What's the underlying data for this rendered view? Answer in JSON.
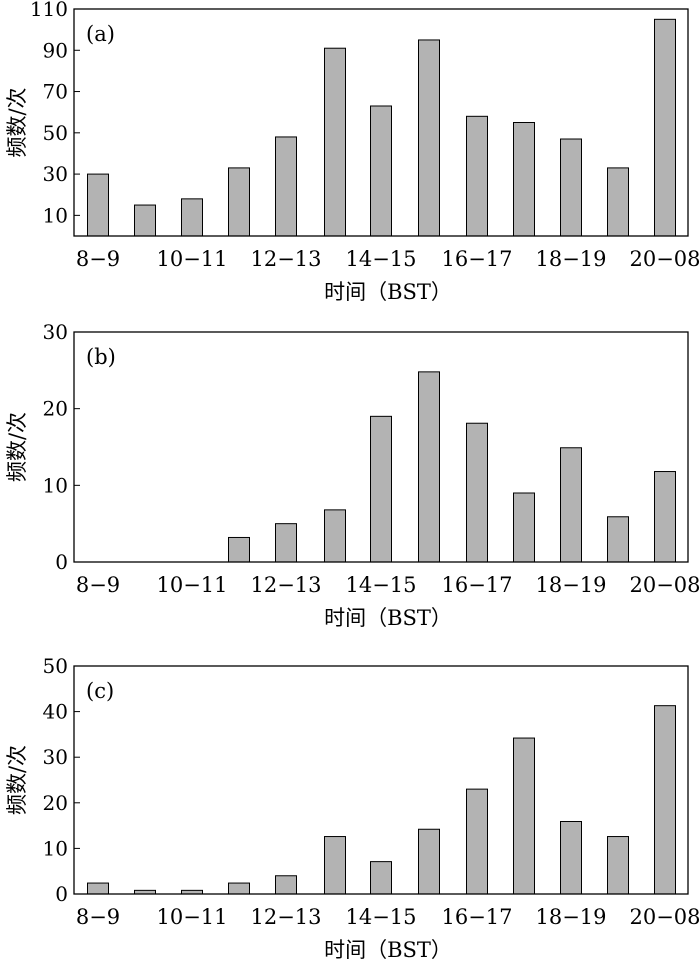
{
  "chart_data": [
    {
      "type": "bar",
      "panel_label": "(a)",
      "categories": [
        "8–9",
        "9–10",
        "10–11",
        "11–12",
        "12–13",
        "13–14",
        "14–15",
        "15–16",
        "16–17",
        "17–18",
        "18–19",
        "19–20",
        "20–08"
      ],
      "x_tick_labels": [
        "8−9",
        "",
        "10−11",
        "",
        "12−13",
        "",
        "14−15",
        "",
        "16−17",
        "",
        "18−19",
        "",
        "20−08"
      ],
      "values": [
        30,
        15,
        18,
        33,
        48,
        91,
        63,
        95,
        58,
        55,
        47,
        33,
        105
      ],
      "ylim": [
        0,
        110
      ],
      "yticks": [
        10,
        30,
        50,
        70,
        90,
        110
      ],
      "ylabel": "频数/次",
      "xlabel": "时间（BST）"
    },
    {
      "type": "bar",
      "panel_label": "(b)",
      "categories": [
        "8–9",
        "9–10",
        "10–11",
        "11–12",
        "12–13",
        "13–14",
        "14–15",
        "15–16",
        "16–17",
        "17–18",
        "18–19",
        "19–20",
        "20–08"
      ],
      "x_tick_labels": [
        "8−9",
        "",
        "10−11",
        "",
        "12−13",
        "",
        "14−15",
        "",
        "16−17",
        "",
        "18−19",
        "",
        "20−08"
      ],
      "values": [
        0,
        0,
        0,
        3.2,
        5,
        6.8,
        19,
        24.8,
        18.1,
        9,
        14.9,
        5.9,
        11.8
      ],
      "ylim": [
        0,
        30
      ],
      "yticks": [
        0,
        10,
        20,
        30
      ],
      "ylabel": "频数/次",
      "xlabel": "时间（BST）"
    },
    {
      "type": "bar",
      "panel_label": "(c)",
      "categories": [
        "8–9",
        "9–10",
        "10–11",
        "11–12",
        "12–13",
        "13–14",
        "14–15",
        "15–16",
        "16–17",
        "17–18",
        "18–19",
        "19–20",
        "20–08"
      ],
      "x_tick_labels": [
        "8−9",
        "",
        "10−11",
        "",
        "12−13",
        "",
        "14−15",
        "",
        "16−17",
        "",
        "18−19",
        "",
        "20−08"
      ],
      "values": [
        2.4,
        0.8,
        0.8,
        2.4,
        4,
        12.6,
        7.1,
        14.2,
        23,
        34.2,
        15.9,
        12.6,
        41.3
      ],
      "ylim": [
        0,
        50
      ],
      "yticks": [
        0,
        10,
        20,
        30,
        40,
        50
      ],
      "ylabel": "频数/次",
      "xlabel": "时间（BST）"
    }
  ]
}
